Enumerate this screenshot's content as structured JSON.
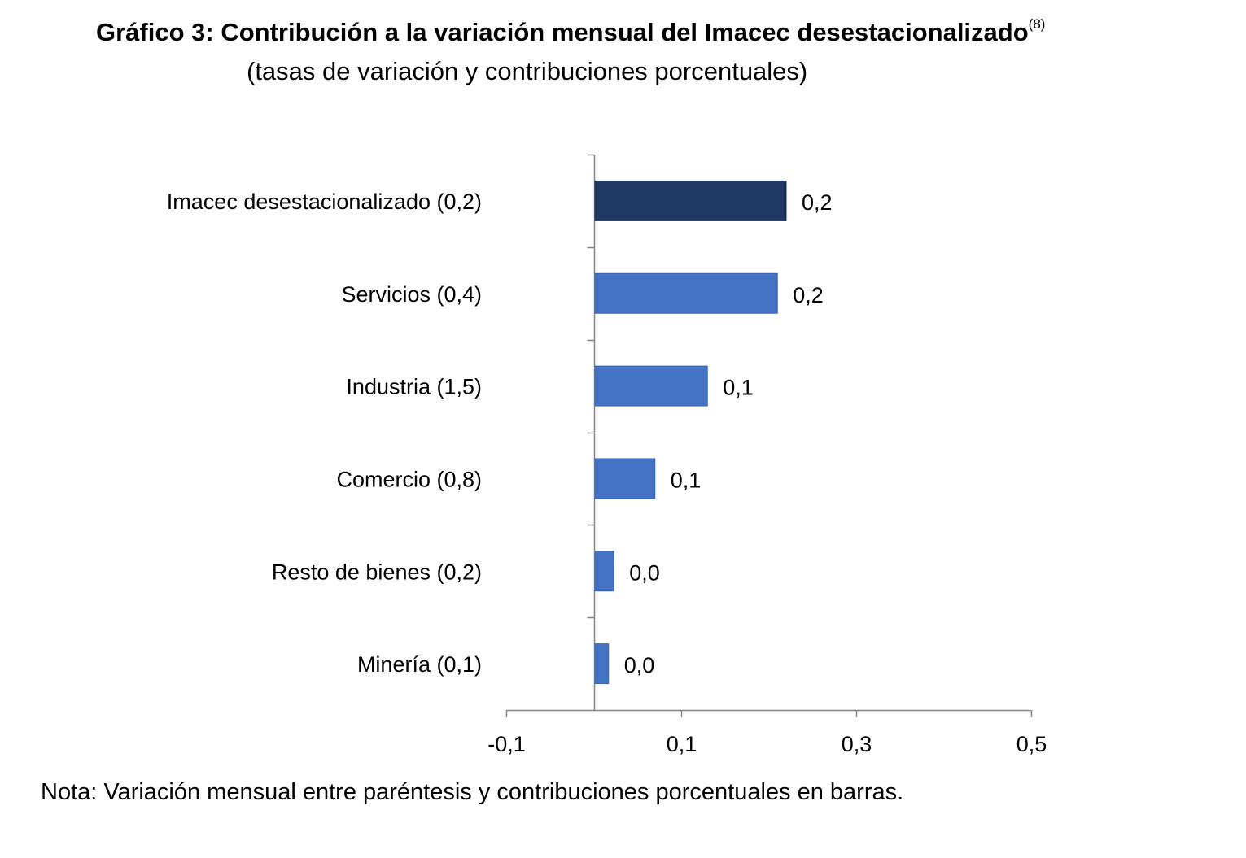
{
  "title": {
    "main": "Gráfico 3: Contribución a la variación mensual del Imacec desestacionalizado",
    "footnote_marker": "(8)",
    "subtitle": "(tasas de variación y contribuciones porcentuales)"
  },
  "chart_data": {
    "type": "bar",
    "orientation": "horizontal",
    "categories": [
      "Imacec desestacionalizado (0,2)",
      "Servicios (0,4)",
      "Industria (1,5)",
      "Comercio (0,8)",
      "Resto de bienes (0,2)",
      "Minería (0,1)"
    ],
    "values": [
      0.22,
      0.21,
      0.13,
      0.07,
      0.023,
      0.017
    ],
    "data_labels": [
      "0,2",
      "0,2",
      "0,1",
      "0,1",
      "0,0",
      "0,0"
    ],
    "bar_colors": [
      "#1f3864",
      "#4472c4",
      "#4472c4",
      "#4472c4",
      "#4472c4",
      "#4472c4"
    ],
    "xlim": [
      -0.1,
      0.5
    ],
    "xticks": [
      -0.1,
      0.1,
      0.3,
      0.5
    ],
    "xtick_labels": [
      "-0,1",
      "0,1",
      "0,3",
      "0,5"
    ],
    "grid": false,
    "legend": "none"
  },
  "note": "Nota: Variación mensual entre paréntesis y contribuciones porcentuales en barras."
}
